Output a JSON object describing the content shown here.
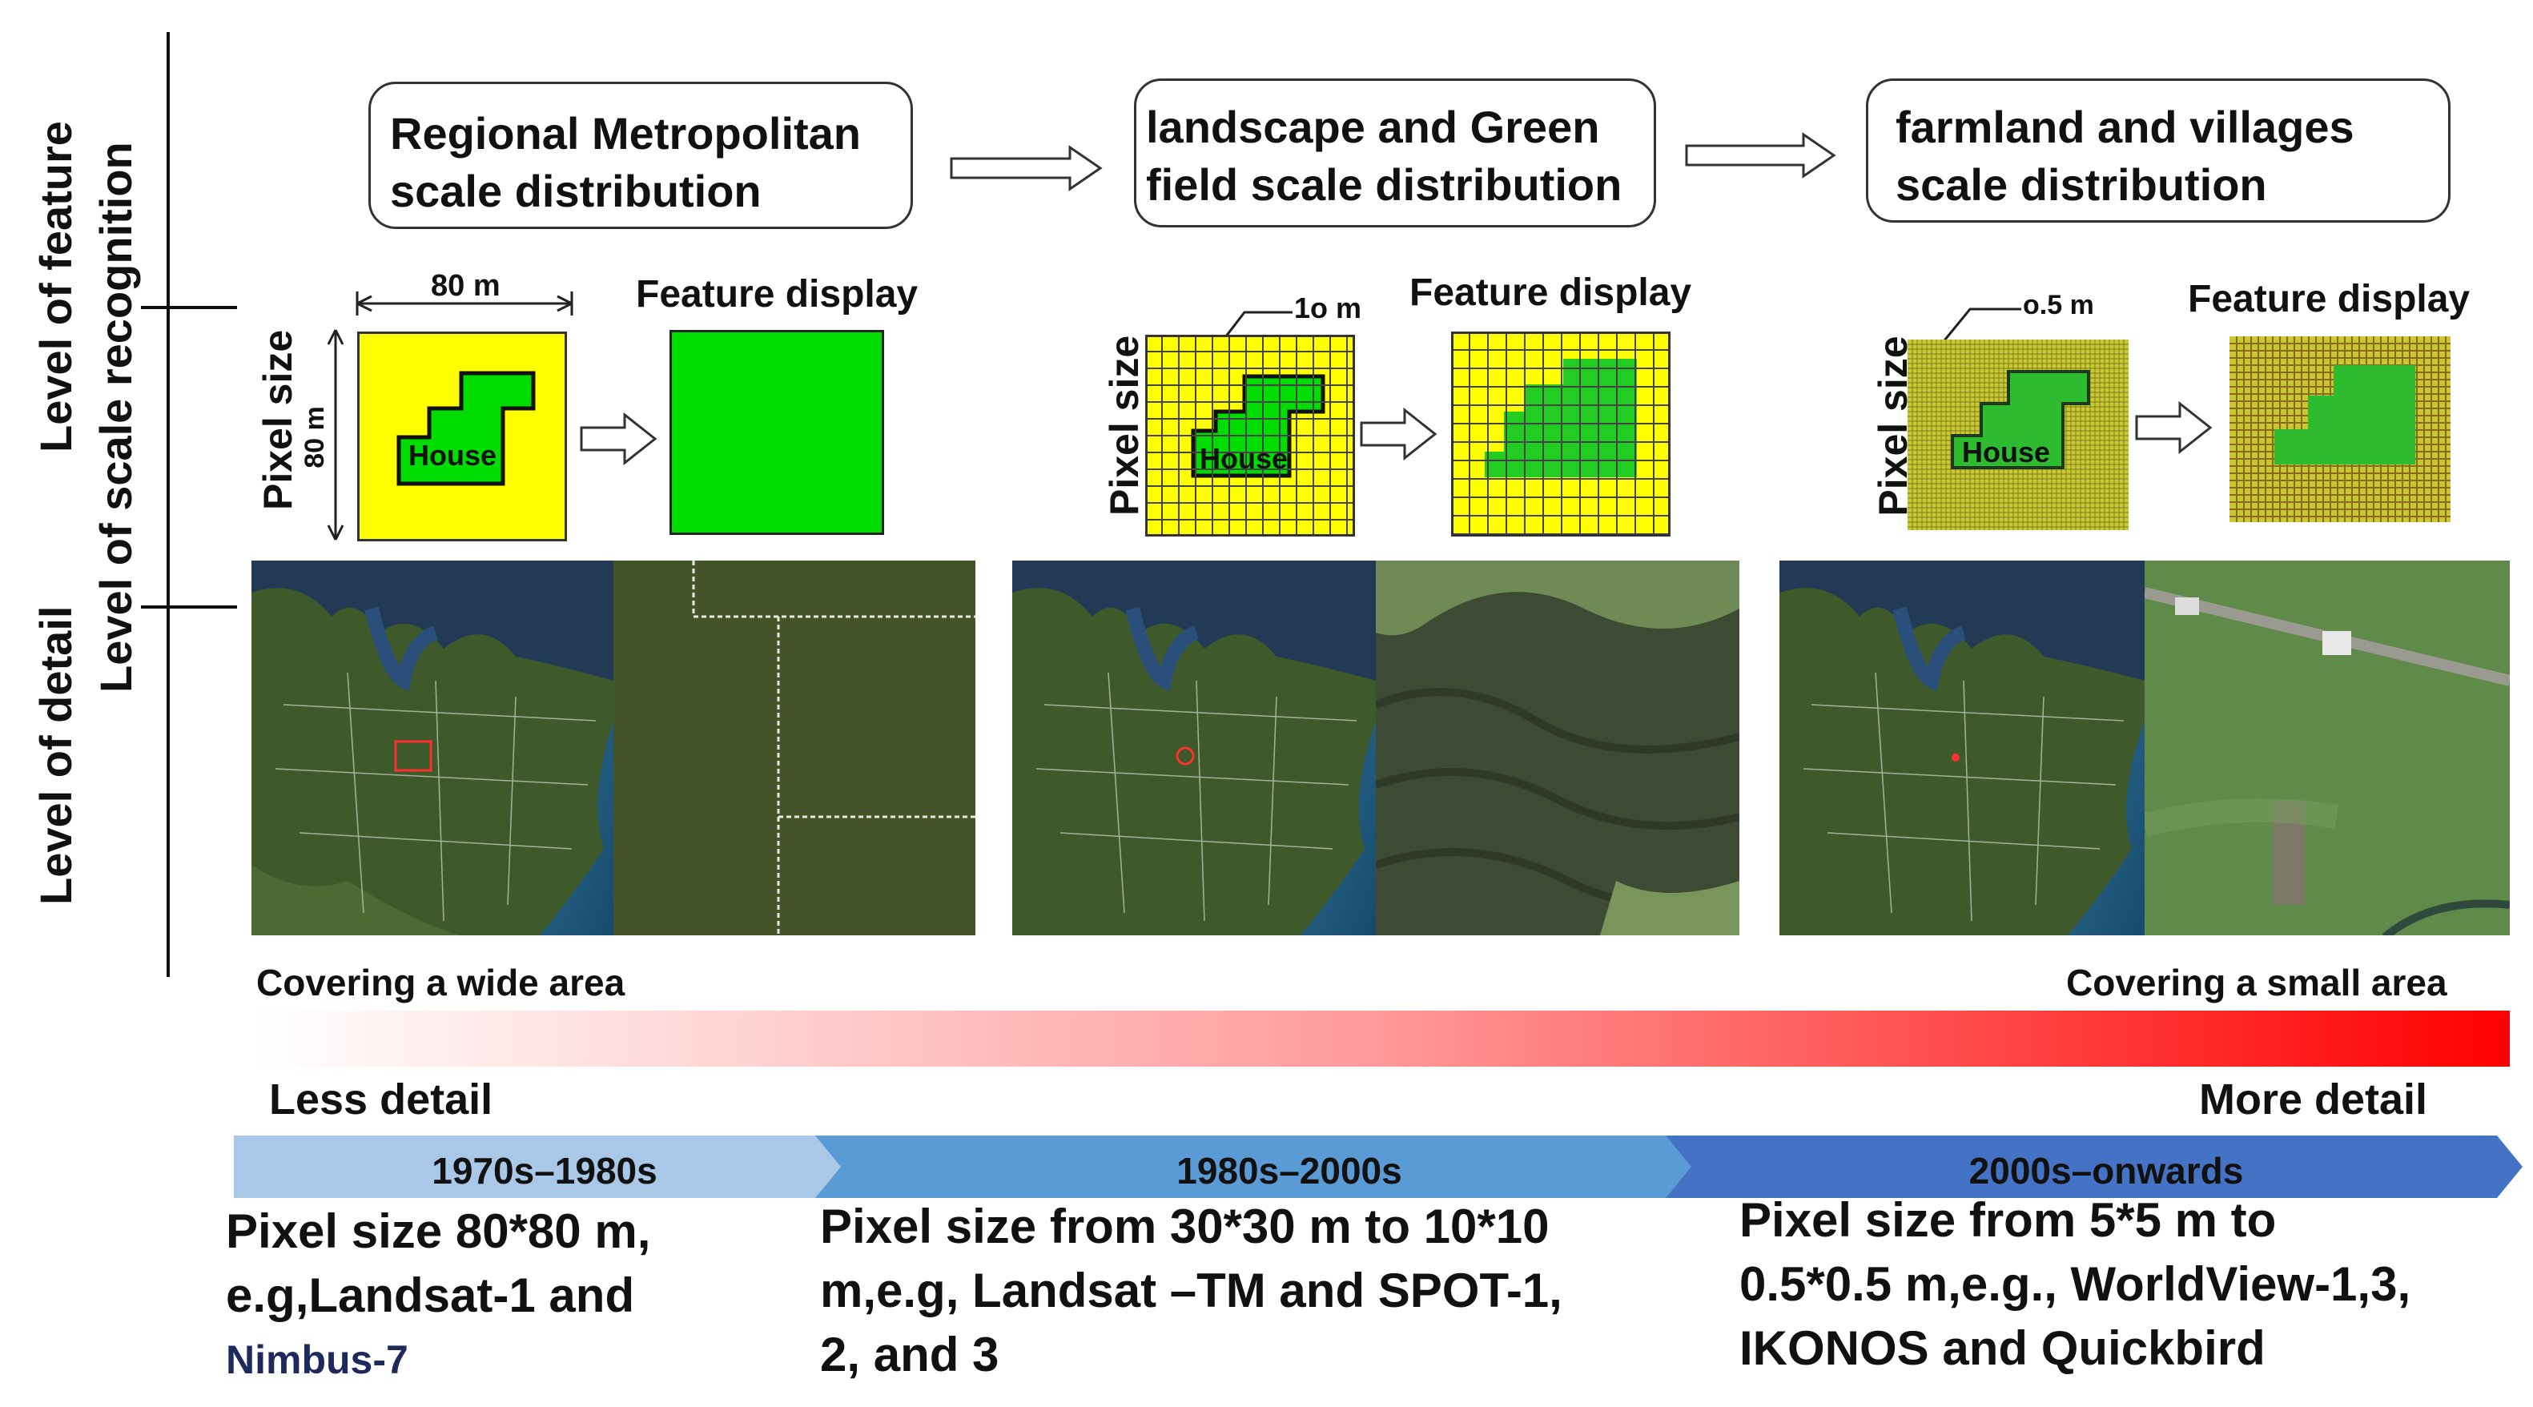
{
  "side_labels": {
    "feature": "Level of feature",
    "scale_recognition": "Level of scale recognition",
    "detail": "Level of detail"
  },
  "scales": [
    {
      "title": "Regional Metropolitan scale distribution",
      "pixel_label": "80 m",
      "pixel_label_vertical": "80 m",
      "feature_display": "Feature display",
      "pixel_size": "Pixel size",
      "house": "House"
    },
    {
      "title": "landscape and Green field scale distribution",
      "pixel_label": "1o m",
      "feature_display": "Feature display",
      "pixel_size": "Pixel size",
      "house": "House"
    },
    {
      "title": "farmland and villages scale distribution",
      "pixel_label": "o.5 m",
      "feature_display": "Feature display",
      "pixel_size": "Pixel size",
      "house": "House"
    }
  ],
  "coverage": {
    "left": "Covering a wide area",
    "right": "Covering a small area"
  },
  "detail": {
    "left": "Less detail",
    "right": "More detail"
  },
  "timeline": [
    {
      "period": "1970s–1980s",
      "color": "#a9c8e8",
      "desc_lines": [
        "Pixel size 80*80 m,",
        "e.g,Landsat-1 and"
      ],
      "extra": "Nimbus-7"
    },
    {
      "period": "1980s–2000s",
      "color": "#5b9bd5",
      "desc_lines": [
        "Pixel size from 30*30 m to 10*10",
        "m,e.g, Landsat –TM and SPOT-1,",
        "2, and 3"
      ]
    },
    {
      "period": "2000s–onwards",
      "color": "#4472c4",
      "desc_lines": [
        "Pixel size from 5*5 m to",
        "0.5*0.5 m,e.g., WorldView-1,3,",
        "IKONOS and Quickbird"
      ]
    }
  ],
  "colors": {
    "yellow": "#ffff00",
    "green": "#00dd00",
    "gradient_end": "#ff0000",
    "extra_text": "#1f2a5c"
  }
}
